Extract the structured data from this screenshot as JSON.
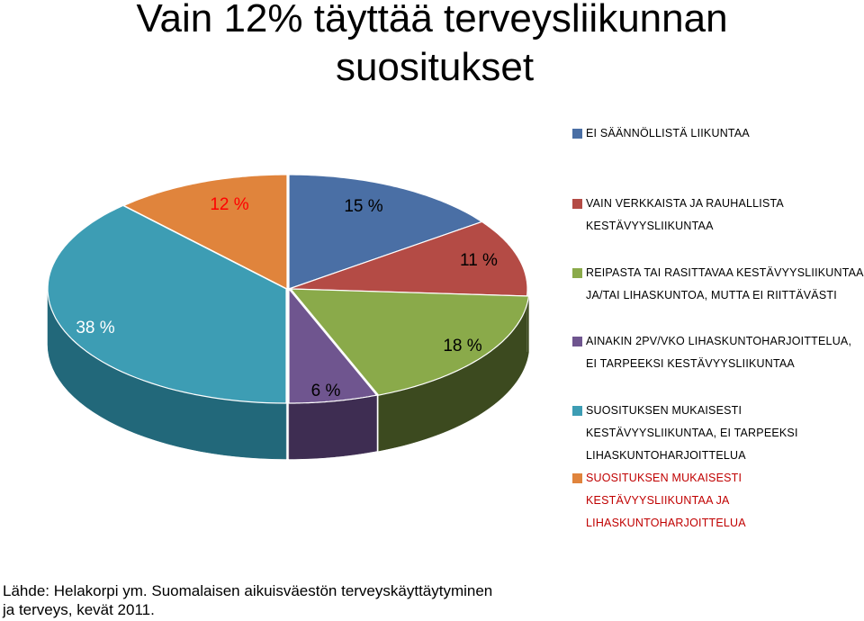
{
  "title": {
    "line1": "Vain 12% täyttää terveysliikunnan",
    "line2": "suositukset"
  },
  "chart_data": {
    "type": "pie",
    "style": "3d-exploded",
    "slices": [
      {
        "label": "EI SÄÄNNÖLLISTÄ LIIKUNTAA",
        "value": 15,
        "value_label": "15 %",
        "color": "#4a6fa5",
        "dark": "#2f4a72",
        "label_color": "#000000"
      },
      {
        "label": "VAIN VERKKAISTA JA RAUHALLISTA KESTÄVYYSLIIKUNTAA",
        "value": 11,
        "value_label": "11 %",
        "color": "#b44b45",
        "dark": "#7a2f2b",
        "label_color": "#000000"
      },
      {
        "label": "REIPASTA TAI RASITTAVAA KESTÄVYYSLIIKUNTAA JA/TAI LIHASKUNTOA, MUTTA EI RIITTÄVÄSTI",
        "value": 18,
        "value_label": "18 %",
        "color": "#8aaa4a",
        "dark": "#3c4a1f",
        "label_color": "#000000"
      },
      {
        "label": "AINAKIN 2PV/VKO LIHASKUNTOHARJOITTELUA, EI TARPEEKSI KESTÄVYYSLIIKUNTAA",
        "value": 6,
        "value_label": "6 %",
        "color": "#6f558f",
        "dark": "#3e2d52",
        "label_color": "#000000"
      },
      {
        "label": "SUOSITUKSEN MUKAISESTI KESTÄVYYSLIIKUNTAA, EI TARPEEKSI LIHASKUNTOHARJOITTELUA",
        "value": 38,
        "value_label": "38 %",
        "color": "#3d9db4",
        "dark": "#22687a",
        "label_color": "#ffffff"
      },
      {
        "label": "SUOSITUKSEN MUKAISESTI KESTÄVYYSLIIKUNTAA JA LIHASKUNTOHARJOITTELUA",
        "value": 12,
        "value_label": "12 %",
        "color": "#e0843c",
        "dark": "#9c5520",
        "label_color": "#ff0000"
      }
    ],
    "legend_position": "right"
  },
  "legend": {
    "items": [
      {
        "text": "Ei säännöllistä liikuntaa",
        "color": "#4a6fa5"
      },
      {
        "text": "Vain verkkaista ja rauhallista\nkestävyysliikuntaa",
        "color": "#b44b45"
      },
      {
        "text": "Reipasta tai rasittavaa kestävyysliikuntaa\nja/tai lihaskuntoa, mutta ei riittävästi",
        "color": "#8aaa4a"
      },
      {
        "text": "Ainakin 2pv/vko lihaskuntoharjoittelua,\nei tarpeeksi kestävyysliikuntaa",
        "color": "#6f558f"
      },
      {
        "text": "Suosituksen mukaisesti\nkestävyysliikuntaa, ei tarpeeksi\nlihaskuntoharjoittelua",
        "color": "#3d9db4"
      },
      {
        "text": "Suosituksen mukaisesti\nkestävyysliikuntaa ja\nlihaskuntoharjoittelua",
        "color": "#e0843c",
        "highlight": true
      }
    ]
  },
  "source": "Lähde: Helakorpi ym. Suomalaisen aikuisväestön terveyskäyttäytyminen\nja terveys, kevät 2011."
}
